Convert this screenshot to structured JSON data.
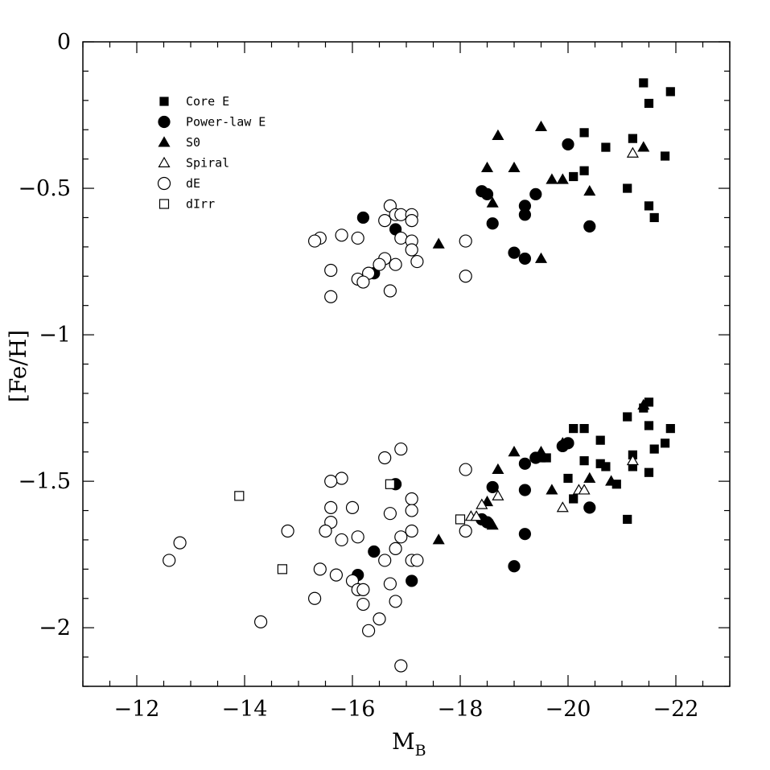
{
  "chart_data": {
    "type": "scatter",
    "xlabel": "M",
    "xlabel_sub": "B",
    "ylabel": "[Fe/H]",
    "xlim": [
      -11,
      -23
    ],
    "ylim": [
      -2.2,
      0
    ],
    "x_ticks": [
      -12,
      -14,
      -16,
      -18,
      -20,
      -22
    ],
    "x_tick_labels": [
      "−12",
      "−14",
      "−16",
      "−18",
      "−20",
      "−22"
    ],
    "y_ticks": [
      0,
      -0.5,
      -1,
      -1.5,
      -2
    ],
    "y_tick_labels": [
      "0",
      "−0.5",
      "−1",
      "−1.5",
      "−2"
    ],
    "legend_position": "top-left",
    "series": [
      {
        "name": "Core E",
        "marker": "filled-square",
        "points": [
          [
            -21.4,
            -0.14
          ],
          [
            -21.9,
            -0.17
          ],
          [
            -21.5,
            -0.21
          ],
          [
            -20.3,
            -0.31
          ],
          [
            -21.2,
            -0.33
          ],
          [
            -20.7,
            -0.36
          ],
          [
            -21.8,
            -0.39
          ],
          [
            -20.3,
            -0.44
          ],
          [
            -20.1,
            -0.46
          ],
          [
            -21.1,
            -0.5
          ],
          [
            -21.5,
            -0.56
          ],
          [
            -21.6,
            -0.6
          ],
          [
            -21.5,
            -1.23
          ],
          [
            -21.4,
            -1.25
          ],
          [
            -21.1,
            -1.28
          ],
          [
            -21.5,
            -1.31
          ],
          [
            -20.1,
            -1.32
          ],
          [
            -20.3,
            -1.32
          ],
          [
            -21.9,
            -1.32
          ],
          [
            -20.6,
            -1.36
          ],
          [
            -21.8,
            -1.37
          ],
          [
            -21.6,
            -1.39
          ],
          [
            -19.6,
            -1.42
          ],
          [
            -19.5,
            -1.42
          ],
          [
            -20.3,
            -1.43
          ],
          [
            -21.2,
            -1.41
          ],
          [
            -20.6,
            -1.44
          ],
          [
            -20.7,
            -1.45
          ],
          [
            -21.2,
            -1.45
          ],
          [
            -21.5,
            -1.47
          ],
          [
            -20.0,
            -1.49
          ],
          [
            -20.9,
            -1.51
          ],
          [
            -20.1,
            -1.56
          ],
          [
            -21.1,
            -1.63
          ]
        ]
      },
      {
        "name": "Power-law E",
        "marker": "filled-circle",
        "points": [
          [
            -20.0,
            -0.35
          ],
          [
            -18.4,
            -0.51
          ],
          [
            -18.5,
            -0.52
          ],
          [
            -19.4,
            -0.52
          ],
          [
            -19.2,
            -0.56
          ],
          [
            -19.2,
            -0.59
          ],
          [
            -16.2,
            -0.6
          ],
          [
            -18.6,
            -0.62
          ],
          [
            -20.4,
            -0.63
          ],
          [
            -16.8,
            -0.64
          ],
          [
            -19.0,
            -0.72
          ],
          [
            -19.2,
            -0.74
          ],
          [
            -16.4,
            -0.79
          ],
          [
            -20.0,
            -1.37
          ],
          [
            -19.9,
            -1.38
          ],
          [
            -19.4,
            -1.42
          ],
          [
            -19.2,
            -1.44
          ],
          [
            -16.8,
            -1.51
          ],
          [
            -18.6,
            -1.52
          ],
          [
            -19.2,
            -1.53
          ],
          [
            -20.4,
            -1.59
          ],
          [
            -18.4,
            -1.63
          ],
          [
            -18.5,
            -1.64
          ],
          [
            -19.2,
            -1.68
          ],
          [
            -16.4,
            -1.74
          ],
          [
            -19.0,
            -1.79
          ],
          [
            -16.1,
            -1.82
          ],
          [
            -17.1,
            -1.84
          ]
        ]
      },
      {
        "name": "S0",
        "marker": "filled-triangle",
        "points": [
          [
            -19.5,
            -0.29
          ],
          [
            -18.7,
            -0.32
          ],
          [
            -21.4,
            -0.36
          ],
          [
            -18.5,
            -0.43
          ],
          [
            -19.0,
            -0.43
          ],
          [
            -19.7,
            -0.47
          ],
          [
            -19.9,
            -0.47
          ],
          [
            -20.4,
            -0.51
          ],
          [
            -18.6,
            -0.55
          ],
          [
            -17.6,
            -0.69
          ],
          [
            -19.5,
            -0.74
          ],
          [
            -21.4,
            -1.24
          ],
          [
            -19.9,
            -1.37
          ],
          [
            -19.0,
            -1.4
          ],
          [
            -19.5,
            -1.4
          ],
          [
            -18.7,
            -1.46
          ],
          [
            -20.4,
            -1.49
          ],
          [
            -20.8,
            -1.5
          ],
          [
            -19.7,
            -1.53
          ],
          [
            -18.5,
            -1.57
          ],
          [
            -18.6,
            -1.65
          ],
          [
            -17.6,
            -1.7
          ]
        ]
      },
      {
        "name": "Spiral",
        "marker": "open-triangle",
        "points": [
          [
            -21.2,
            -0.38
          ],
          [
            -21.2,
            -1.43
          ],
          [
            -20.2,
            -1.53
          ],
          [
            -20.3,
            -1.53
          ],
          [
            -18.7,
            -1.55
          ],
          [
            -18.4,
            -1.58
          ],
          [
            -19.9,
            -1.59
          ],
          [
            -18.2,
            -1.62
          ],
          [
            -18.3,
            -1.62
          ]
        ]
      },
      {
        "name": "dE",
        "marker": "open-circle",
        "points": [
          [
            -16.7,
            -0.56
          ],
          [
            -16.8,
            -0.59
          ],
          [
            -16.9,
            -0.59
          ],
          [
            -17.1,
            -0.59
          ],
          [
            -16.6,
            -0.61
          ],
          [
            -17.1,
            -0.61
          ],
          [
            -16.1,
            -0.67
          ],
          [
            -16.9,
            -0.67
          ],
          [
            -15.8,
            -0.66
          ],
          [
            -15.4,
            -0.67
          ],
          [
            -15.3,
            -0.68
          ],
          [
            -17.1,
            -0.68
          ],
          [
            -18.1,
            -0.68
          ],
          [
            -17.1,
            -0.71
          ],
          [
            -16.6,
            -0.74
          ],
          [
            -16.5,
            -0.76
          ],
          [
            -16.8,
            -0.76
          ],
          [
            -17.2,
            -0.75
          ],
          [
            -15.6,
            -0.78
          ],
          [
            -16.3,
            -0.79
          ],
          [
            -16.1,
            -0.81
          ],
          [
            -16.2,
            -0.82
          ],
          [
            -18.1,
            -0.8
          ],
          [
            -16.7,
            -0.85
          ],
          [
            -15.6,
            -0.87
          ],
          [
            -16.9,
            -1.39
          ],
          [
            -16.6,
            -1.42
          ],
          [
            -18.1,
            -1.46
          ],
          [
            -15.8,
            -1.49
          ],
          [
            -15.6,
            -1.5
          ],
          [
            -17.1,
            -1.56
          ],
          [
            -15.6,
            -1.59
          ],
          [
            -16.0,
            -1.59
          ],
          [
            -17.1,
            -1.6
          ],
          [
            -16.7,
            -1.61
          ],
          [
            -15.6,
            -1.64
          ],
          [
            -15.5,
            -1.67
          ],
          [
            -16.1,
            -1.69
          ],
          [
            -16.9,
            -1.69
          ],
          [
            -14.8,
            -1.67
          ],
          [
            -17.1,
            -1.67
          ],
          [
            -18.1,
            -1.67
          ],
          [
            -15.8,
            -1.7
          ],
          [
            -12.8,
            -1.71
          ],
          [
            -16.8,
            -1.73
          ],
          [
            -12.6,
            -1.77
          ],
          [
            -16.6,
            -1.77
          ],
          [
            -17.1,
            -1.77
          ],
          [
            -17.2,
            -1.77
          ],
          [
            -15.4,
            -1.8
          ],
          [
            -15.7,
            -1.82
          ],
          [
            -16.0,
            -1.84
          ],
          [
            -16.7,
            -1.85
          ],
          [
            -16.1,
            -1.87
          ],
          [
            -16.2,
            -1.87
          ],
          [
            -15.3,
            -1.9
          ],
          [
            -16.8,
            -1.91
          ],
          [
            -16.2,
            -1.92
          ],
          [
            -16.5,
            -1.97
          ],
          [
            -14.3,
            -1.98
          ],
          [
            -16.3,
            -2.01
          ],
          [
            -16.9,
            -2.13
          ]
        ]
      },
      {
        "name": "dIrr",
        "marker": "open-square",
        "points": [
          [
            -13.9,
            -1.55
          ],
          [
            -14.7,
            -1.8
          ],
          [
            -16.7,
            -1.51
          ],
          [
            -18.0,
            -1.63
          ]
        ]
      }
    ]
  }
}
